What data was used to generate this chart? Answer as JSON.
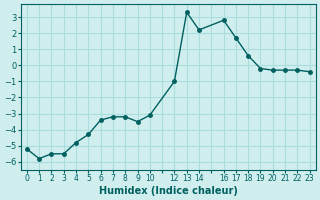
{
  "x": [
    0,
    1,
    2,
    3,
    4,
    5,
    6,
    7,
    8,
    9,
    10,
    12,
    13,
    14,
    16,
    17,
    18,
    19,
    20,
    21,
    22,
    23
  ],
  "y": [
    -5.2,
    -5.8,
    -5.5,
    -5.5,
    -4.8,
    -4.3,
    -3.4,
    -3.2,
    -3.2,
    -3.5,
    -3.1,
    -1.0,
    3.3,
    2.2,
    2.8,
    1.7,
    0.6,
    -0.2,
    -0.3,
    -0.3,
    -0.3,
    -0.4
  ],
  "xlabel": "Humidex (Indice chaleur)",
  "xlim": [
    -0.5,
    23.5
  ],
  "ylim": [
    -6.5,
    3.8
  ],
  "yticks": [
    -6,
    -5,
    -4,
    -3,
    -2,
    -1,
    0,
    1,
    2,
    3
  ],
  "xtick_labels": [
    "0",
    "1",
    "2",
    "3",
    "4",
    "5",
    "6",
    "7",
    "8",
    "9",
    "10",
    "",
    "12",
    "13",
    "14",
    "",
    "16",
    "17",
    "18",
    "19",
    "20",
    "21",
    "22",
    "23"
  ],
  "xtick_positions": [
    0,
    1,
    2,
    3,
    4,
    5,
    6,
    7,
    8,
    9,
    10,
    11,
    12,
    13,
    14,
    15,
    16,
    17,
    18,
    19,
    20,
    21,
    22,
    23
  ],
  "line_color": "#006060",
  "marker_color": "#006060",
  "bg_color": "#d0eeee",
  "grid_color": "#aadddd",
  "font_color": "#006060"
}
